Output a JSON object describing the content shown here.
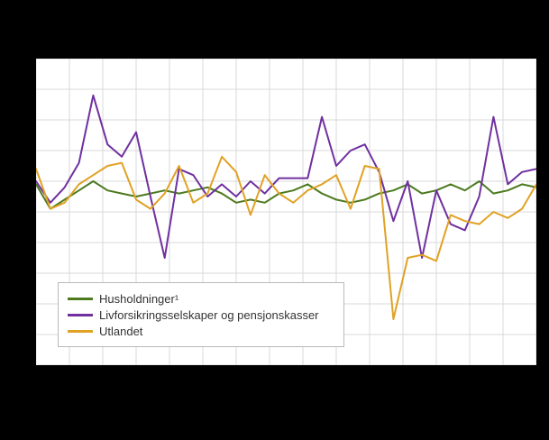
{
  "figure": {
    "background_color": "#000000",
    "plot_background_color": "#ffffff",
    "gridline_color": "#d9d9d9"
  },
  "legend": {
    "items": [
      {
        "label": "Husholdninger¹",
        "color": "#4d7a1f"
      },
      {
        "label": "Livforsikringsselskaper og pensjonskasser",
        "color": "#7030a0"
      },
      {
        "label": "Utlandet",
        "color": "#e0a225"
      }
    ]
  },
  "chart_data": {
    "type": "line",
    "title": "",
    "xlabel": "",
    "ylabel": "",
    "x": [
      0,
      1,
      2,
      3,
      4,
      5,
      6,
      7,
      8,
      9,
      10,
      11,
      12,
      13,
      14,
      15,
      16,
      17,
      18,
      19,
      20,
      21,
      22,
      23,
      24,
      25,
      26,
      27,
      28,
      29,
      30,
      31,
      32,
      33,
      34,
      35
    ],
    "ylim": [
      0,
      10
    ],
    "grid": true,
    "legend_position": "bottom-left-inside",
    "axis_tick_labels_visible": false,
    "series": [
      {
        "name": "Husholdninger¹",
        "color": "#4d7a1f",
        "values": [
          5.9,
          5.1,
          5.4,
          5.7,
          6.0,
          5.7,
          5.6,
          5.5,
          5.6,
          5.7,
          5.6,
          5.7,
          5.8,
          5.6,
          5.3,
          5.4,
          5.3,
          5.6,
          5.7,
          5.9,
          5.6,
          5.4,
          5.3,
          5.4,
          5.6,
          5.7,
          5.9,
          5.6,
          5.7,
          5.9,
          5.7,
          6.0,
          5.6,
          5.7,
          5.9,
          5.8
        ]
      },
      {
        "name": "Livforsikringsselskaper og pensjonskasser",
        "color": "#7030a0",
        "values": [
          6.0,
          5.3,
          5.8,
          6.6,
          8.8,
          7.2,
          6.8,
          7.6,
          5.5,
          3.5,
          6.4,
          6.2,
          5.5,
          5.9,
          5.5,
          6.0,
          5.6,
          6.1,
          6.1,
          6.1,
          8.1,
          6.5,
          7.0,
          7.2,
          6.3,
          4.7,
          6.0,
          3.5,
          5.7,
          4.6,
          4.4,
          5.5,
          8.1,
          5.9,
          6.3,
          6.4
        ]
      },
      {
        "name": "Utlandet",
        "color": "#e0a225",
        "values": [
          6.4,
          5.1,
          5.3,
          5.9,
          6.2,
          6.5,
          6.6,
          5.4,
          5.1,
          5.6,
          6.5,
          5.3,
          5.6,
          6.8,
          6.3,
          4.9,
          6.2,
          5.6,
          5.3,
          5.7,
          5.9,
          6.2,
          5.1,
          6.5,
          6.4,
          1.5,
          3.5,
          3.6,
          3.4,
          4.9,
          4.7,
          4.6,
          5.0,
          4.8,
          5.1,
          5.9
        ]
      }
    ]
  }
}
